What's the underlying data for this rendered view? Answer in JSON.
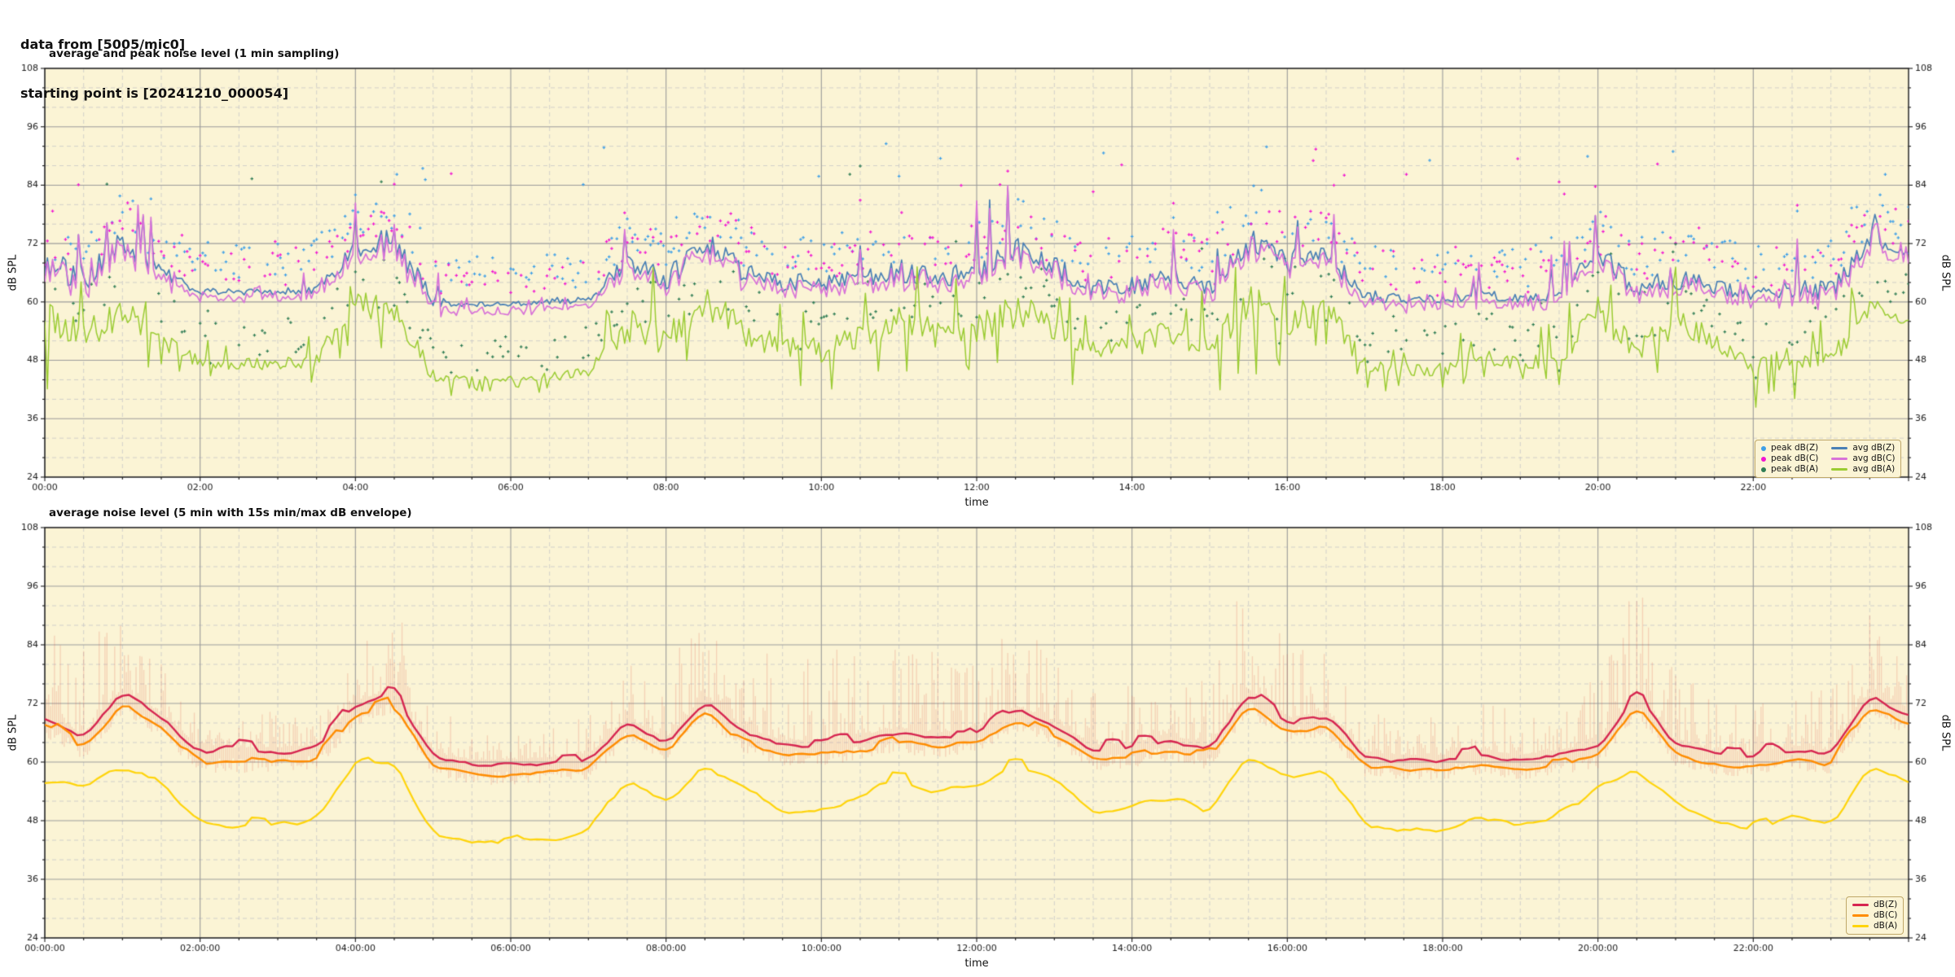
{
  "header": {
    "line1": "data from [5005/mic0]",
    "line2": "starting point is [20241210_000054]"
  },
  "colors": {
    "page_bg": "#ffffff",
    "plot_bg": "#fbf4d5",
    "grid_major": "#9b9b9b",
    "grid_minor": "#c6c6c6",
    "frame": "#1a1a1a",
    "tick_text": "#1a1a1a",
    "legend_bg": "#fbf4d5",
    "legend_border": "#bfa768",
    "avg_dbz": "#4a80b5",
    "avg_dbc": "#d873d8",
    "avg_dba": "#9bcc33",
    "peak_dbz": "#3d9fe8",
    "peak_dbc": "#f215d2",
    "peak_dba": "#2f7d55",
    "dbz": "#d62550",
    "dbc": "#ff8c00",
    "dba": "#ffd40a",
    "envelope": "rgba(221,85,70,0.22)"
  },
  "chart_data": [
    {
      "type": "line",
      "title": "average and peak noise level (1 min sampling)",
      "xlabel": "time",
      "ylabel": "dB SPL",
      "ylabel_right": "dB SPL",
      "ylim": [
        24,
        108
      ],
      "yticks": [
        24,
        36,
        48,
        60,
        72,
        84,
        96,
        108
      ],
      "y_minor_step": 4,
      "xlim_hours": [
        0,
        24
      ],
      "xticks": {
        "hours": [
          0,
          2,
          4,
          6,
          8,
          10,
          12,
          14,
          16,
          18,
          20,
          22
        ],
        "labels": [
          "00:00",
          "02:00",
          "04:00",
          "06:00",
          "08:00",
          "10:00",
          "12:00",
          "14:00",
          "16:00",
          "18:00",
          "20:00",
          "22:00"
        ]
      },
      "x_minor_step_hours": 0.5,
      "grid": true,
      "legend_position": "lower right",
      "anchor_step_hours": 0.5,
      "series": [
        {
          "name": "avg dB(Z)",
          "color_key": "avg_dbz",
          "anchors": [
            68,
            64,
            72,
            66,
            62,
            62,
            62,
            62.5,
            70.5,
            72,
            60,
            59.5,
            59.5,
            60,
            60.5,
            68,
            64,
            72,
            66,
            63.5,
            63.5,
            65,
            66,
            65,
            66,
            70,
            67,
            62.5,
            63,
            64.5,
            62.5,
            72,
            68,
            69,
            61,
            60.5,
            60.5,
            61.5,
            60.5,
            61.5,
            70,
            62,
            64.5,
            63,
            61.5,
            62.5,
            62,
            72,
            69.5
          ]
        },
        {
          "name": "avg dB(C)",
          "color_key": "avg_dbc",
          "anchors": [
            66.9,
            62.9,
            70.9,
            64.9,
            60.9,
            60.9,
            60.9,
            61.4,
            69.4,
            70.9,
            58.9,
            58.4,
            58.4,
            58.9,
            59.4,
            66.9,
            62.9,
            70.9,
            64.9,
            62.4,
            62.4,
            63.9,
            64.9,
            63.9,
            64.9,
            68.9,
            65.9,
            61.4,
            61.9,
            63.4,
            61.4,
            70.9,
            66.9,
            67.9,
            59.9,
            59.4,
            59.4,
            60.4,
            59.4,
            60.4,
            68.9,
            60.9,
            63.4,
            61.9,
            60.4,
            61.4,
            60.9,
            70.9,
            68.4
          ]
        },
        {
          "name": "avg dB(A)",
          "color_key": "avg_dba",
          "anchors": [
            56,
            52,
            58,
            52,
            47.5,
            47,
            47,
            48,
            59.5,
            58,
            44.5,
            44,
            44,
            44.5,
            45.5,
            55,
            52,
            59,
            54,
            50,
            50,
            53,
            56,
            53,
            54,
            58,
            55,
            50,
            51,
            53,
            50,
            60,
            56,
            58,
            47,
            46,
            46,
            48.5,
            47,
            48.5,
            58,
            50,
            55,
            52,
            46,
            49,
            47,
            59,
            56
          ]
        }
      ],
      "variability": {
        "z": [
          8,
          7,
          6,
          3,
          1.5,
          1.5,
          1.5,
          2.5,
          4,
          7,
          2.5,
          1.2,
          1.2,
          1.5,
          2,
          5.5,
          5,
          6,
          5,
          4.5,
          4.5,
          5,
          5.5,
          5,
          5.5,
          6.5,
          5,
          4,
          4,
          4.5,
          4,
          6.5,
          6,
          5.5,
          3,
          2,
          2,
          2.5,
          2,
          3,
          6.5,
          4.5,
          5,
          3.5,
          3.5,
          4,
          5,
          3,
          1.5
        ],
        "a": [
          9,
          8,
          7,
          4,
          3,
          3,
          3,
          3.5,
          5,
          8,
          3,
          1.5,
          1.5,
          2,
          2.5,
          8,
          7,
          8,
          7,
          6,
          6,
          7,
          7,
          6.5,
          7,
          8,
          6.5,
          5.5,
          6,
          6.5,
          6,
          9,
          8,
          7,
          3.5,
          3,
          3,
          3.5,
          3,
          4,
          9,
          6,
          7,
          5,
          5,
          5.5,
          6,
          4,
          2
        ]
      },
      "scatter": [
        {
          "name": "peak dB(Z)",
          "color_key": "peak_dbz"
        },
        {
          "name": "peak dB(C)",
          "color_key": "peak_dbc"
        },
        {
          "name": "peak dB(A)",
          "color_key": "peak_dba"
        }
      ]
    },
    {
      "type": "line",
      "title": "average noise level (5 min with 15s min/max dB envelope)",
      "xlabel": "time",
      "ylabel": "dB SPL",
      "ylabel_right": "dB SPL",
      "ylim": [
        24,
        108
      ],
      "yticks": [
        24,
        36,
        48,
        60,
        72,
        84,
        96,
        108
      ],
      "y_minor_step": 4,
      "xlim_hours": [
        0,
        24
      ],
      "xticks": {
        "hours": [
          0,
          2,
          4,
          6,
          8,
          10,
          12,
          14,
          16,
          18,
          20,
          22
        ],
        "labels": [
          "00:00:00",
          "02:00:00",
          "04:00:00",
          "06:00:00",
          "08:00:00",
          "10:00:00",
          "12:00:00",
          "14:00:00",
          "16:00:00",
          "18:00:00",
          "20:00:00",
          "22:00:00"
        ]
      },
      "x_minor_step_hours": 0.5,
      "grid": true,
      "legend_position": "lower right",
      "anchor_step_hours": 0.5,
      "series": [
        {
          "name": "dB(Z)",
          "color_key": "dbz",
          "anchors": [
            69.5,
            64.5,
            74,
            69,
            62,
            62,
            62,
            62.5,
            71.5,
            74,
            61,
            59.5,
            59.5,
            60,
            60.5,
            68,
            64,
            72.5,
            66,
            63.5,
            63.5,
            64.5,
            66,
            65,
            66,
            70.5,
            67.5,
            62.5,
            63,
            64.5,
            62.5,
            74,
            68,
            69.5,
            61,
            60.5,
            60.5,
            61.5,
            60.5,
            61.5,
            63,
            73.5,
            63.5,
            61.5,
            61,
            62.5,
            61.5,
            73.5,
            69.5
          ]
        },
        {
          "name": "dB(C)",
          "color_key": "dbc",
          "anchors": [
            67.5,
            62.5,
            72,
            67,
            60,
            60,
            60,
            60.5,
            69.5,
            72,
            59,
            57.5,
            57.5,
            58,
            58.5,
            66,
            62,
            70.5,
            64,
            61.5,
            61.5,
            62.5,
            64,
            63,
            64,
            68.5,
            65.5,
            60.5,
            61,
            62.5,
            60.5,
            72,
            66,
            67.5,
            59,
            58.5,
            58.5,
            59.5,
            58.5,
            59.5,
            61,
            71.5,
            61.5,
            59.5,
            59,
            60.5,
            59.5,
            71.5,
            67.5
          ]
        },
        {
          "name": "dB(A)",
          "color_key": "dba",
          "anchors": [
            56,
            55,
            59,
            56,
            47.5,
            47,
            47,
            48,
            59.5,
            60,
            45,
            44,
            44,
            44.5,
            45.5,
            56,
            52,
            59.5,
            55,
            50,
            50,
            53,
            56.5,
            54,
            55,
            59.5,
            56.5,
            50,
            51,
            53,
            50,
            61.5,
            56.5,
            58.5,
            47,
            46,
            46,
            49,
            47,
            48.5,
            55,
            58,
            52,
            48,
            46,
            49,
            47,
            59,
            56
          ]
        }
      ],
      "envelope": {
        "color_key": "envelope",
        "below_db": 3,
        "max_above_anchors": [
          22,
          22,
          14,
          10,
          6,
          8,
          8,
          6,
          8,
          22,
          10,
          5,
          5,
          6,
          8,
          16,
          14,
          16,
          16,
          18,
          16,
          20,
          18,
          16,
          16,
          18,
          14,
          12,
          12,
          14,
          12,
          26,
          18,
          14,
          8,
          8,
          8,
          10,
          8,
          10,
          14,
          22,
          14,
          10,
          10,
          12,
          12,
          16,
          10
        ]
      }
    }
  ]
}
